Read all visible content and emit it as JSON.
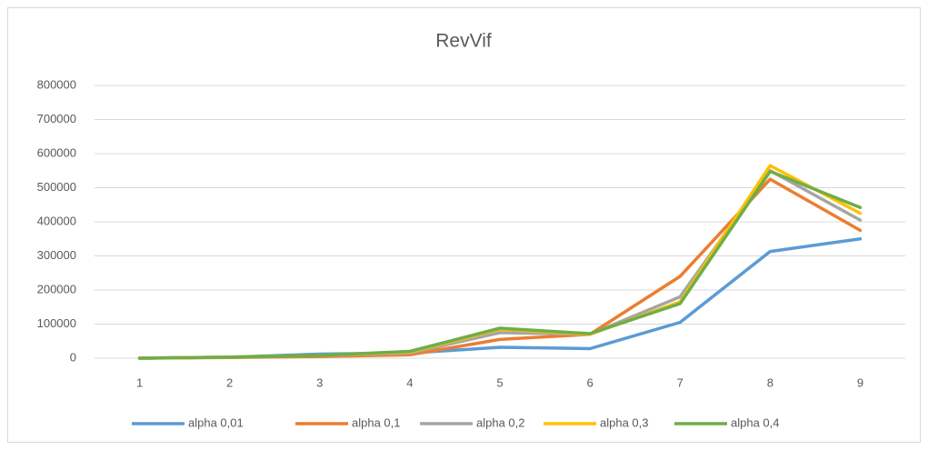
{
  "chart_data": {
    "type": "line",
    "title": "RevVif",
    "categories": [
      "1",
      "2",
      "3",
      "4",
      "5",
      "6",
      "7",
      "8",
      "9"
    ],
    "series": [
      {
        "name": "alpha 0,01",
        "color": "#5b9bd5",
        "values": [
          0,
          3000,
          12000,
          15000,
          32000,
          28000,
          105000,
          313000,
          350000
        ]
      },
      {
        "name": "alpha 0,1",
        "color": "#ed7d31",
        "values": [
          0,
          2000,
          5000,
          10000,
          55000,
          70000,
          240000,
          525000,
          375000
        ]
      },
      {
        "name": "alpha 0,2",
        "color": "#a5a5a5",
        "values": [
          0,
          3000,
          8000,
          15000,
          75000,
          70000,
          180000,
          550000,
          405000
        ]
      },
      {
        "name": "alpha 0,3",
        "color": "#ffc000",
        "values": [
          0,
          3000,
          8000,
          18000,
          85000,
          70000,
          165000,
          565000,
          425000
        ]
      },
      {
        "name": "alpha 0,4",
        "color": "#70ad47",
        "values": [
          0,
          3000,
          8000,
          20000,
          88000,
          72000,
          160000,
          548000,
          442000
        ]
      }
    ],
    "ylim": [
      0,
      800000
    ],
    "yticks": [
      0,
      100000,
      200000,
      300000,
      400000,
      500000,
      600000,
      700000,
      800000
    ],
    "grid": true,
    "legend": "bottom"
  }
}
